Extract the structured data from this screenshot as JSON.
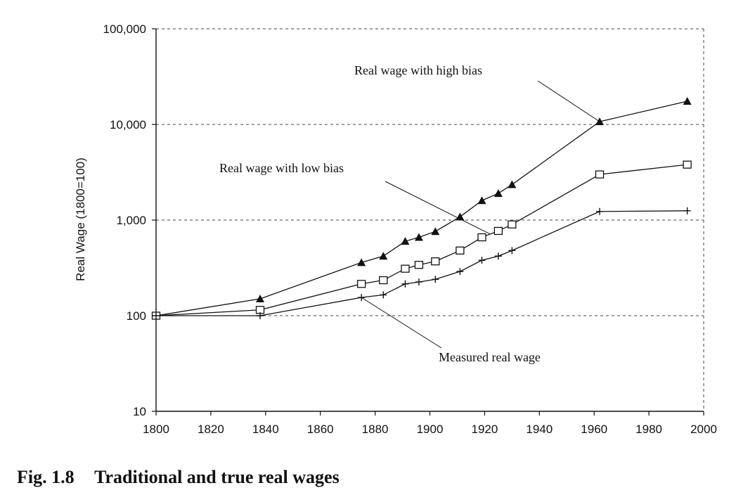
{
  "chart_data": {
    "type": "line",
    "xlabel": "",
    "ylabel": "Real Wage (1800=100)",
    "y_scale": "log",
    "ylim": [
      10,
      100000
    ],
    "xlim": [
      1800,
      2000
    ],
    "x_ticks": [
      1800,
      1820,
      1840,
      1860,
      1880,
      1900,
      1920,
      1940,
      1960,
      1980,
      2000
    ],
    "y_ticks": [
      10,
      100,
      1000,
      10000,
      100000
    ],
    "x_tick_labels": [
      "1800",
      "1820",
      "1840",
      "1860",
      "1880",
      "1900",
      "1920",
      "1940",
      "1960",
      "1980",
      "2000"
    ],
    "y_tick_labels": [
      "10",
      "100",
      "1,000",
      "10,000",
      "100,000"
    ],
    "grid": "horizontal dashed",
    "series": [
      {
        "name": "Real wage with high bias",
        "marker": "filled-triangle",
        "color": "#111111",
        "x": [
          1800,
          1838,
          1875,
          1883,
          1891,
          1896,
          1902,
          1911,
          1919,
          1925,
          1930,
          1962,
          1994
        ],
        "y": [
          100,
          150,
          360,
          420,
          600,
          660,
          760,
          1080,
          1600,
          1900,
          2350,
          10700,
          17500
        ]
      },
      {
        "name": "Real wage with low bias",
        "marker": "open-square",
        "color": "#111111",
        "x": [
          1800,
          1838,
          1875,
          1883,
          1891,
          1896,
          1902,
          1911,
          1919,
          1925,
          1930,
          1962,
          1994
        ],
        "y": [
          100,
          115,
          215,
          235,
          310,
          340,
          370,
          480,
          660,
          770,
          900,
          3000,
          3800
        ]
      },
      {
        "name": "Measured real wage",
        "marker": "plus",
        "color": "#111111",
        "x": [
          1800,
          1838,
          1875,
          1883,
          1891,
          1896,
          1902,
          1911,
          1919,
          1925,
          1930,
          1962,
          1994
        ],
        "y": [
          100,
          100,
          155,
          165,
          215,
          225,
          240,
          290,
          380,
          420,
          480,
          1230,
          1250
        ]
      }
    ],
    "annotations": [
      {
        "text": "Real wage with high bias",
        "series": 0,
        "point_x": 1962
      },
      {
        "text": "Real wage with low bias",
        "series": 1,
        "point_x": 1922
      },
      {
        "text": "Measured real wage",
        "series": 2,
        "point_x": 1875
      }
    ]
  },
  "caption": {
    "number": "Fig. 1.8",
    "title": "Traditional and true real wages"
  }
}
